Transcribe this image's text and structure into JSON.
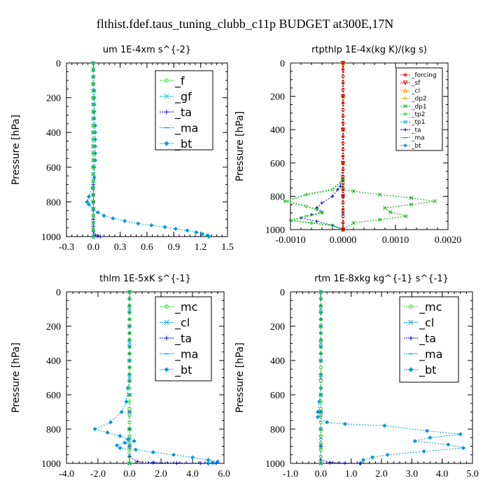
{
  "figure": {
    "title": "flthist.fdef.taus_tuning_clubb_c11p  BUDGET at300E,17N"
  },
  "chart_data": [
    {
      "type": "line",
      "title": "um  1E-4xm s^{-2}",
      "ylabel": "Pressure [hPa]",
      "xlim": [
        -0.3,
        1.5
      ],
      "ylim": [
        1000,
        0
      ],
      "xticks": [
        "-0.3",
        "0.0",
        "0.3",
        "0.6",
        "0.9",
        "1.2",
        "1.5"
      ],
      "xtick_values": [
        -0.3,
        0.0,
        0.3,
        0.6,
        0.9,
        1.2,
        1.5
      ],
      "yticks": [
        "0",
        "200",
        "400",
        "600",
        "800",
        "1000"
      ],
      "ytick_values": [
        0,
        200,
        400,
        600,
        800,
        1000
      ],
      "legend": "top-right",
      "legend_style": "big",
      "series": [
        {
          "name": "_f",
          "color": "#33cc33",
          "marker": "circle",
          "x": [
            0,
            0,
            0,
            0,
            0,
            0,
            0,
            0,
            0,
            0,
            0,
            0,
            0,
            0,
            0,
            0,
            0,
            0,
            0,
            0,
            0,
            0,
            0,
            0,
            0,
            0
          ],
          "y": [
            0,
            40,
            80,
            120,
            160,
            200,
            240,
            280,
            320,
            360,
            400,
            440,
            480,
            520,
            560,
            600,
            640,
            680,
            720,
            760,
            800,
            840,
            880,
            920,
            960,
            1000
          ]
        },
        {
          "name": "_gf",
          "color": "#2aa9a9",
          "marker": "x",
          "x": [
            0,
            0,
            0,
            0,
            0,
            0,
            0,
            0,
            0,
            0,
            0,
            0,
            0,
            0,
            0,
            0,
            0,
            0,
            0,
            0,
            0,
            0,
            0,
            0,
            0,
            0
          ],
          "y": [
            0,
            40,
            80,
            120,
            160,
            200,
            240,
            280,
            320,
            360,
            400,
            440,
            480,
            520,
            560,
            600,
            640,
            680,
            720,
            760,
            800,
            840,
            880,
            920,
            960,
            1000
          ]
        },
        {
          "name": "_ta",
          "color": "#0000cc",
          "marker": "plus",
          "x": [
            0,
            0,
            0,
            0,
            0,
            0,
            0,
            0.02,
            0.05,
            0.08
          ],
          "y": [
            700,
            760,
            800,
            850,
            900,
            940,
            970,
            990,
            997,
            1000
          ]
        },
        {
          "name": "_ma",
          "color": "#0099cc",
          "marker": "dash",
          "x": [
            0,
            0,
            0,
            0,
            0,
            0
          ],
          "y": [
            0,
            200,
            400,
            600,
            800,
            1000
          ]
        },
        {
          "name": "_bt",
          "color": "#0099dd",
          "marker": "diamond",
          "x": [
            0,
            0,
            0,
            0,
            0.01,
            0.01,
            0.01,
            0.01,
            0.01,
            0.02,
            0.02,
            0.02,
            0.02,
            0.02,
            0.02,
            0.01,
            0.01,
            -0.01,
            -0.05,
            -0.07,
            -0.05,
            0.0,
            0.05,
            0.12,
            0.22,
            0.35,
            0.5,
            0.65,
            0.8,
            0.92,
            1.05,
            1.15,
            1.22,
            1.28,
            1.29
          ],
          "y": [
            0,
            40,
            80,
            120,
            160,
            200,
            240,
            280,
            320,
            360,
            400,
            440,
            480,
            520,
            560,
            600,
            660,
            720,
            770,
            800,
            815,
            840,
            860,
            880,
            895,
            910,
            925,
            935,
            945,
            955,
            965,
            975,
            985,
            993,
            1000
          ]
        }
      ]
    },
    {
      "type": "line",
      "title": "rtpthlp  1E-4x(kg K)/(kg s)",
      "ylabel": "Pressure [hPa]",
      "xlim": [
        -0.001,
        0.002
      ],
      "ylim": [
        1000,
        0
      ],
      "xticks": [
        "-0.0010",
        "0.0000",
        "0.0010",
        "0.0020"
      ],
      "xtick_values": [
        -0.001,
        0.0,
        0.001,
        0.002
      ],
      "yticks": [
        "0",
        "200",
        "400",
        "600",
        "800",
        "1000"
      ],
      "ytick_values": [
        0,
        200,
        400,
        600,
        800,
        1000
      ],
      "legend": "top-right",
      "legend_style": "small",
      "series": [
        {
          "name": "_forcing",
          "color": "#dd0000",
          "marker": "circle",
          "x": [
            0,
            0,
            0,
            0,
            0,
            0,
            0,
            0,
            0,
            0,
            0,
            0,
            0,
            0,
            0,
            0,
            0,
            0,
            0,
            0,
            0,
            0,
            0,
            0,
            0,
            0
          ],
          "y": [
            0,
            40,
            80,
            120,
            160,
            200,
            240,
            280,
            320,
            360,
            400,
            440,
            480,
            520,
            560,
            600,
            640,
            680,
            720,
            760,
            800,
            840,
            880,
            920,
            960,
            1000
          ]
        },
        {
          "name": "_sf",
          "color": "#dd0000",
          "marker": "triangle-down",
          "x": [
            0,
            0,
            0,
            0,
            0,
            0
          ],
          "y": [
            0,
            200,
            400,
            600,
            800,
            1000
          ]
        },
        {
          "name": "_cl",
          "color": "#ff9900",
          "marker": "triangle",
          "x": [
            0,
            0,
            0,
            0,
            0,
            0
          ],
          "y": [
            0,
            200,
            400,
            600,
            800,
            1000
          ]
        },
        {
          "name": "_dp2",
          "color": "#cccc00",
          "marker": "circle",
          "x": [
            0,
            0,
            0,
            0,
            0,
            0
          ],
          "y": [
            0,
            200,
            400,
            600,
            800,
            1000
          ]
        },
        {
          "name": "_dp1",
          "color": "#00aa00",
          "marker": "x",
          "x": [
            0,
            0,
            0,
            0,
            0,
            0,
            0,
            0.0002,
            0.0007,
            0.0013,
            0.00175,
            0.0013,
            0.0008,
            0.0009,
            0.0012,
            0.0007,
            0.0002,
            0
          ],
          "y": [
            0,
            200,
            400,
            600,
            700,
            740,
            760,
            770,
            790,
            810,
            830,
            850,
            870,
            895,
            920,
            940,
            960,
            1000
          ]
        },
        {
          "name": "_tp2",
          "color": "#33cc33",
          "marker": "circle",
          "x": [
            0,
            0,
            0,
            0,
            0,
            -0.0002,
            -0.0007,
            -0.0011,
            -0.0007,
            -0.0005,
            -0.0004,
            -0.0007,
            -0.001,
            -0.0006,
            -0.0002,
            0
          ],
          "y": [
            0,
            200,
            400,
            600,
            700,
            760,
            790,
            830,
            860,
            880,
            900,
            920,
            945,
            960,
            975,
            1000
          ]
        },
        {
          "name": "_tp1",
          "color": "#0099cc",
          "marker": "x",
          "x": [
            0,
            0,
            0,
            0,
            0,
            0,
            0
          ],
          "y": [
            0,
            200,
            400,
            600,
            800,
            900,
            1000
          ]
        },
        {
          "name": "_ta",
          "color": "#0000cc",
          "marker": "plus",
          "x": [
            0,
            0,
            0,
            0,
            -5e-05,
            -0.0001,
            -0.0002,
            -0.0004,
            -0.0005,
            -0.0004,
            -0.0006,
            -0.0008,
            -0.0005,
            -0.0002,
            0
          ],
          "y": [
            0,
            200,
            400,
            600,
            740,
            760,
            800,
            840,
            870,
            895,
            910,
            930,
            950,
            975,
            1000
          ]
        },
        {
          "name": "_ma",
          "color": "#0099cc",
          "marker": "dash",
          "x": [
            0,
            0,
            0,
            0,
            0,
            0
          ],
          "y": [
            0,
            200,
            400,
            600,
            800,
            1000
          ]
        },
        {
          "name": "_bt",
          "color": "#0099dd",
          "marker": "diamond",
          "x": [
            0,
            0,
            0,
            0,
            0,
            0,
            0,
            0
          ],
          "y": [
            0,
            200,
            400,
            600,
            700,
            800,
            900,
            1000
          ]
        }
      ]
    },
    {
      "type": "line",
      "title": "thlm  1E-5xK s^{-1}",
      "ylabel": "Pressure [hPa]",
      "xlim": [
        -4.0,
        6.0
      ],
      "ylim": [
        1000,
        0
      ],
      "xticks": [
        "-4.0",
        "-2.0",
        "0.0",
        "2.0",
        "4.0",
        "6.0"
      ],
      "xtick_values": [
        -4.0,
        -2.0,
        0.0,
        2.0,
        4.0,
        6.0
      ],
      "yticks": [
        "0",
        "200",
        "400",
        "600",
        "800",
        "1000"
      ],
      "ytick_values": [
        0,
        200,
        400,
        600,
        800,
        1000
      ],
      "legend": "top-right",
      "legend_style": "big",
      "series": [
        {
          "name": "_mc",
          "color": "#33cc33",
          "marker": "circle",
          "x": [
            0,
            0,
            0,
            0,
            0,
            0,
            0,
            0,
            0,
            0,
            0,
            0,
            0,
            0,
            0,
            0,
            0,
            0,
            0,
            0,
            0,
            0,
            0,
            0,
            0,
            0
          ],
          "y": [
            0,
            40,
            80,
            120,
            160,
            200,
            240,
            280,
            320,
            360,
            400,
            440,
            480,
            520,
            560,
            600,
            640,
            680,
            720,
            760,
            800,
            840,
            880,
            920,
            960,
            1000
          ]
        },
        {
          "name": "_cl",
          "color": "#0099cc",
          "marker": "x",
          "x": [
            0,
            0,
            0,
            0,
            0,
            0,
            0,
            0,
            0,
            0,
            0,
            0,
            0
          ],
          "y": [
            0,
            100,
            200,
            300,
            400,
            500,
            600,
            700,
            800,
            850,
            900,
            950,
            1000
          ]
        },
        {
          "name": "_ta",
          "color": "#0000cc",
          "marker": "plus",
          "x": [
            0,
            0,
            0,
            0,
            0.5,
            1.5,
            3.0,
            4.5,
            5.5
          ],
          "y": [
            700,
            800,
            900,
            960,
            990,
            995,
            998,
            999,
            1000
          ]
        },
        {
          "name": "_ma",
          "color": "#0099cc",
          "marker": "dash",
          "x": [
            0,
            0,
            0,
            0,
            0,
            0
          ],
          "y": [
            0,
            200,
            400,
            600,
            800,
            1000
          ]
        },
        {
          "name": "_bt",
          "color": "#0099dd",
          "marker": "diamond",
          "x": [
            0,
            0,
            0,
            0,
            0,
            0,
            0,
            0,
            0,
            0,
            0,
            0,
            0,
            0,
            -0.1,
            -0.2,
            -0.5,
            -1.2,
            -2.2,
            -1.4,
            -0.6,
            -0.1,
            0.3,
            -0.3,
            -0.8,
            -0.6,
            0.4,
            1.5,
            2.8,
            4.0,
            5.0,
            5.6,
            5.3,
            5.0
          ],
          "y": [
            0,
            40,
            80,
            120,
            160,
            200,
            240,
            280,
            320,
            360,
            400,
            440,
            480,
            520,
            560,
            640,
            700,
            760,
            800,
            820,
            840,
            860,
            870,
            880,
            895,
            910,
            920,
            935,
            950,
            965,
            980,
            990,
            997,
            1000
          ]
        }
      ]
    },
    {
      "type": "line",
      "title": "rtm  1E-8xkg kg^{-1} s^{-1}",
      "ylabel": "Pressure [hPa]",
      "xlim": [
        -1.0,
        5.0
      ],
      "ylim": [
        1000,
        0
      ],
      "xticks": [
        "-1.0",
        "0.0",
        "1.0",
        "2.0",
        "3.0",
        "4.0",
        "5.0"
      ],
      "xtick_values": [
        -1.0,
        0.0,
        1.0,
        2.0,
        3.0,
        4.0,
        5.0
      ],
      "yticks": [
        "0",
        "200",
        "400",
        "600",
        "800",
        "1000"
      ],
      "ytick_values": [
        0,
        200,
        400,
        600,
        800,
        1000
      ],
      "legend": "top-right",
      "legend_style": "big",
      "series": [
        {
          "name": "_mc",
          "color": "#33cc33",
          "marker": "circle",
          "x": [
            0,
            0,
            0,
            0,
            0,
            0,
            0,
            0,
            0,
            0,
            0,
            0,
            0,
            0,
            0,
            0,
            0,
            0,
            0,
            0,
            0,
            0,
            0,
            0,
            0,
            0
          ],
          "y": [
            0,
            40,
            80,
            120,
            160,
            200,
            240,
            280,
            320,
            360,
            400,
            440,
            480,
            520,
            560,
            600,
            640,
            680,
            720,
            760,
            800,
            840,
            880,
            920,
            960,
            1000
          ]
        },
        {
          "name": "_cl",
          "color": "#0099cc",
          "marker": "x",
          "x": [
            0,
            0,
            0,
            0,
            0,
            0,
            0,
            0,
            0,
            0,
            0,
            0
          ],
          "y": [
            0,
            100,
            200,
            300,
            400,
            500,
            600,
            700,
            800,
            850,
            900,
            1000
          ]
        },
        {
          "name": "_ta",
          "color": "#0000cc",
          "marker": "plus",
          "x": [
            0,
            0,
            0,
            0.3,
            0.8,
            1.3
          ],
          "y": [
            700,
            900,
            980,
            995,
            998,
            1000
          ]
        },
        {
          "name": "_ma",
          "color": "#0099cc",
          "marker": "dash",
          "x": [
            0,
            0,
            0,
            0,
            0,
            0
          ],
          "y": [
            0,
            200,
            400,
            600,
            800,
            1000
          ]
        },
        {
          "name": "_bt",
          "color": "#0099dd",
          "marker": "diamond",
          "x": [
            0,
            0,
            0,
            0,
            0,
            0,
            0,
            0,
            0,
            0,
            0,
            0,
            0,
            -0.05,
            -0.1,
            -0.1,
            0.2,
            0.8,
            2.1,
            3.5,
            4.6,
            3.6,
            3.1,
            4.2,
            4.7,
            3.4,
            2.2,
            1.7,
            1.4,
            1.3
          ],
          "y": [
            0,
            40,
            80,
            120,
            160,
            200,
            240,
            280,
            320,
            360,
            400,
            480,
            560,
            640,
            700,
            730,
            760,
            770,
            780,
            810,
            830,
            850,
            870,
            890,
            910,
            930,
            950,
            965,
            980,
            1000
          ]
        }
      ]
    }
  ]
}
